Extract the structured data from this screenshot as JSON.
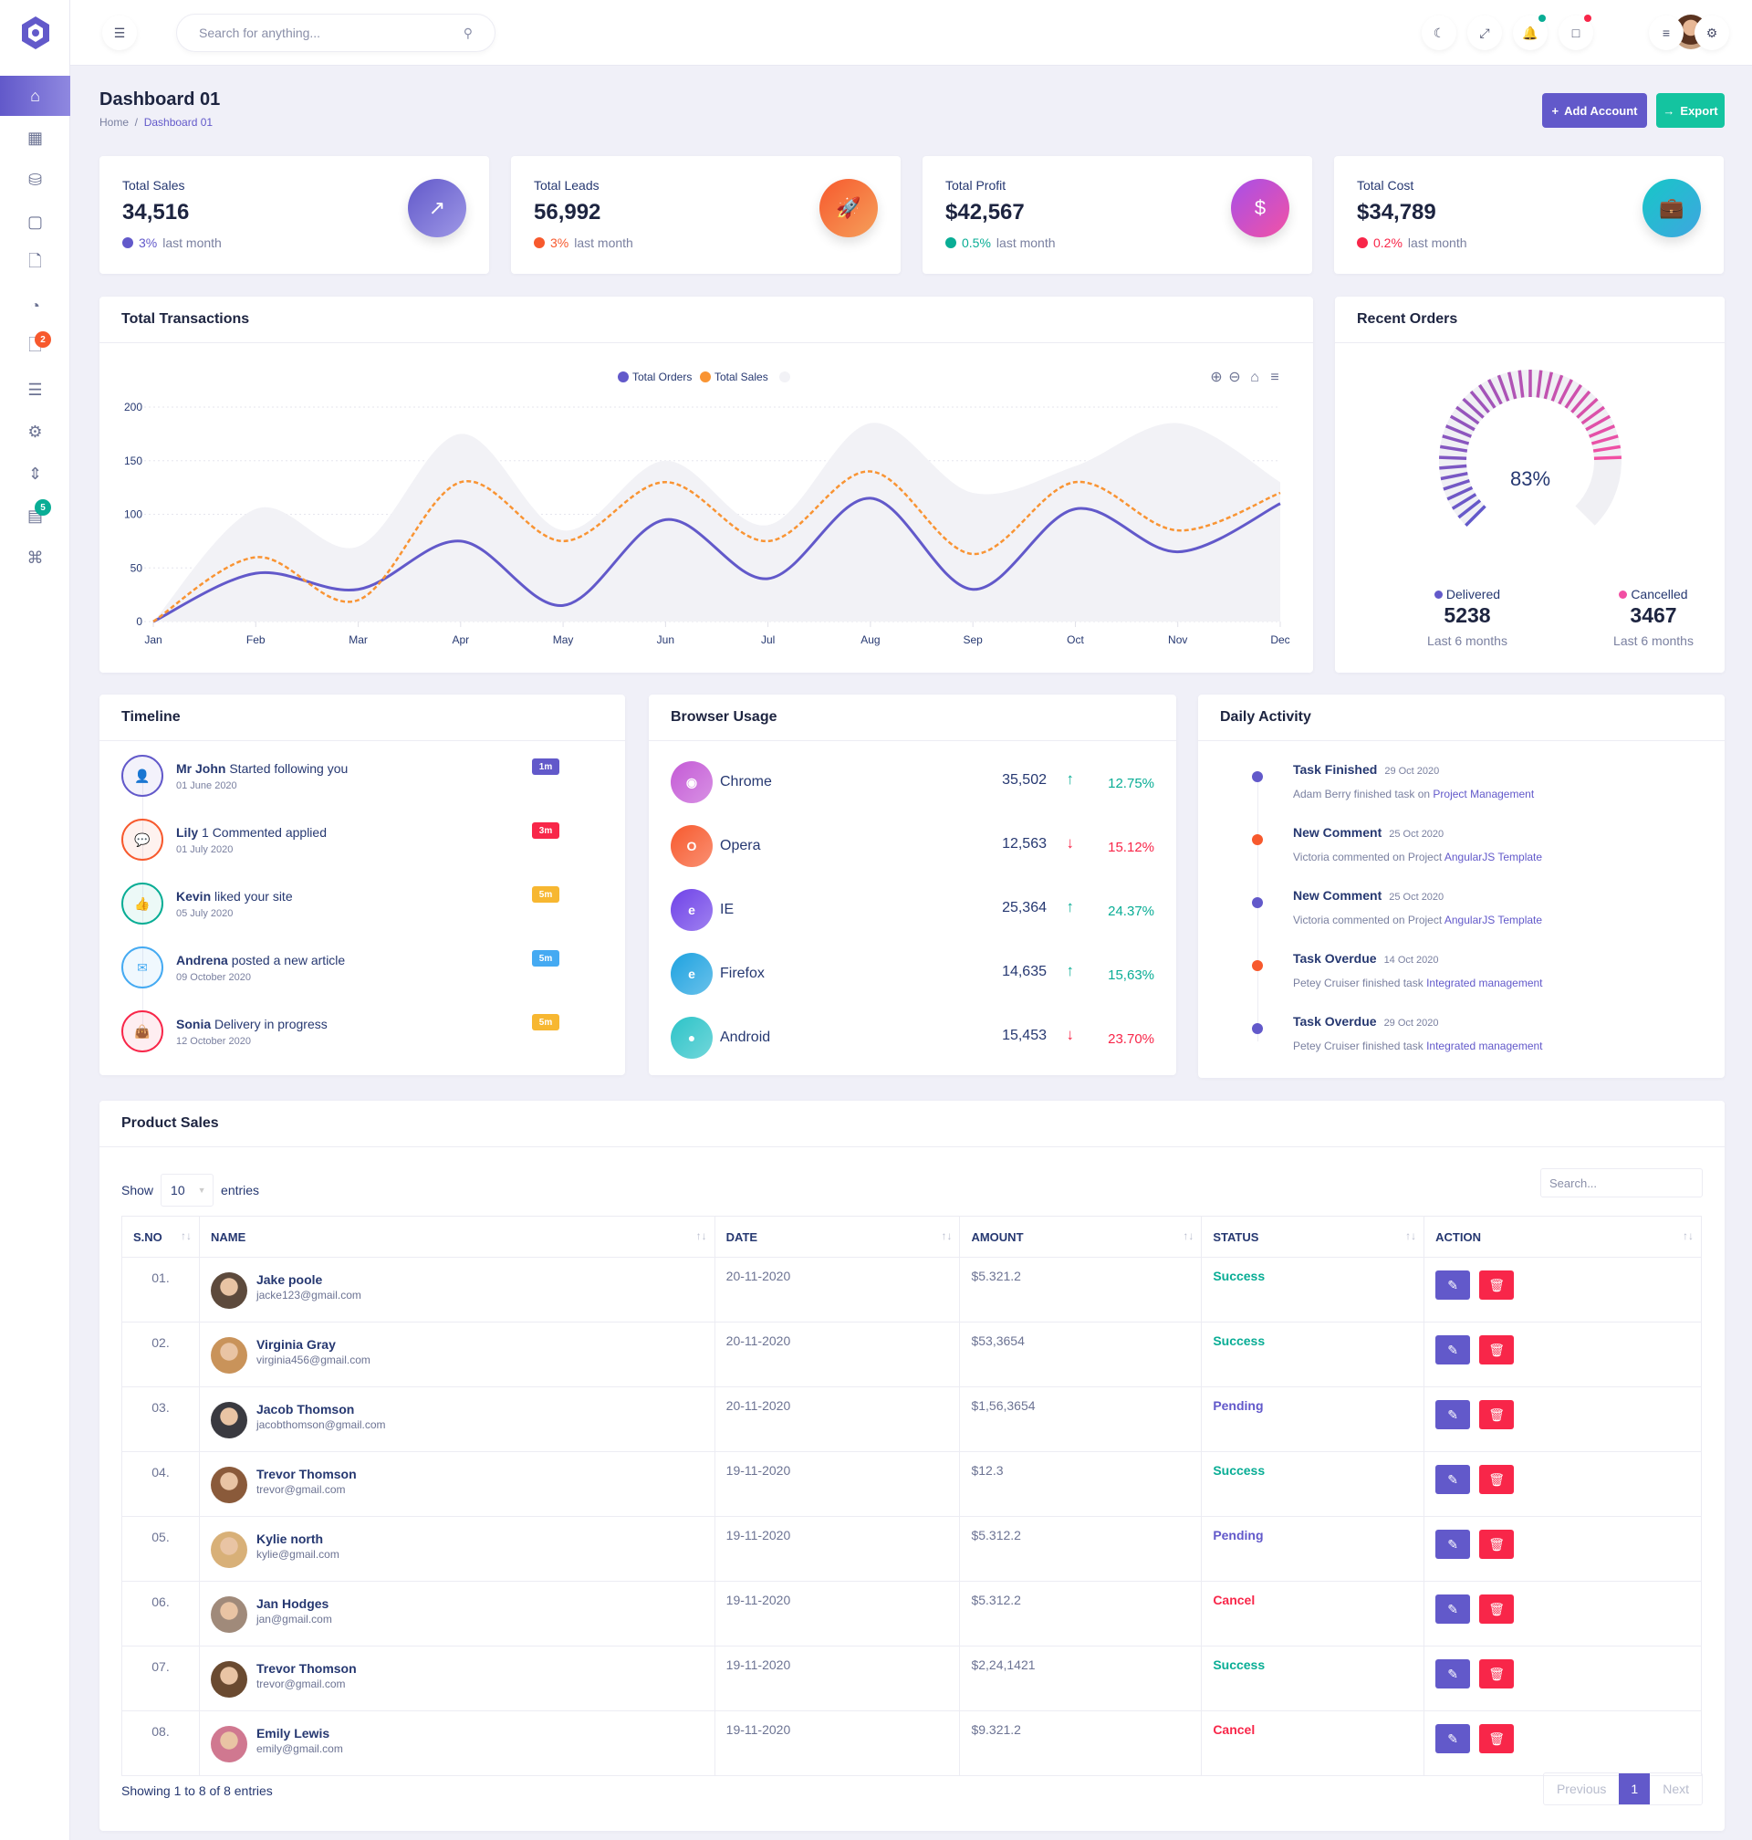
{
  "header": {
    "search_placeholder": "Search for anything..."
  },
  "page": {
    "title": "Dashboard 01",
    "breadcrumb": [
      "Home",
      "Dashboard 01"
    ],
    "add_account": "Add Account",
    "export": "Export"
  },
  "sidebar": {
    "badges": {
      "files": "2",
      "list": "5"
    }
  },
  "stats": [
    {
      "label": "Total Sales",
      "value": "34,516",
      "change": "3%",
      "change_suffix": "last month",
      "trend": "up",
      "color": "#6259ca"
    },
    {
      "label": "Total Leads",
      "value": "56,992",
      "change": "3%",
      "change_suffix": "last month",
      "trend": "up",
      "color": "#f7592d"
    },
    {
      "label": "Total Profit",
      "value": "$42,567",
      "change": "0.5%",
      "change_suffix": "last month",
      "trend": "up",
      "color": "#09ad95"
    },
    {
      "label": "Total Cost",
      "value": "$34,789",
      "change": "0.2%",
      "change_suffix": "last month",
      "trend": "down",
      "color": "#f82649"
    }
  ],
  "transactions": {
    "title": "Total Transactions"
  },
  "chart_data": {
    "type": "line",
    "title": "Total Transactions",
    "categories": [
      "Jan",
      "Feb",
      "Mar",
      "Apr",
      "May",
      "Jun",
      "Jul",
      "Aug",
      "Sep",
      "Oct",
      "Nov",
      "Dec"
    ],
    "ylim": [
      0,
      200
    ],
    "yticks": [
      "0",
      "50",
      "100",
      "150",
      "200"
    ],
    "legend": "top-center",
    "series": [
      {
        "name": "Total Orders",
        "color": "#6259ca",
        "values": [
          0,
          45,
          30,
          75,
          15,
          95,
          40,
          115,
          30,
          105,
          65,
          110
        ]
      },
      {
        "name": "Total Sales",
        "color": "#f99433",
        "values": [
          0,
          60,
          20,
          130,
          75,
          130,
          75,
          140,
          63,
          130,
          85,
          120
        ]
      },
      {
        "name": "",
        "color": "#f2f2f6",
        "values": [
          0,
          105,
          70,
          175,
          85,
          150,
          90,
          185,
          120,
          145,
          185,
          130
        ]
      }
    ]
  },
  "recent_orders": {
    "title": "Recent Orders",
    "percent": 83,
    "percent_label": "83%",
    "delivered": {
      "label": "Delivered",
      "value": "5238",
      "period": "Last 6 months"
    },
    "cancelled": {
      "label": "Cancelled",
      "value": "3467",
      "period": "Last 6 months"
    }
  },
  "timeline": {
    "title": "Timeline",
    "items": [
      {
        "name": "Mr John",
        "text": "Started following you",
        "date": "01 June 2020",
        "badge": "1m",
        "color": "#6259ca"
      },
      {
        "name": "Lily",
        "text": "1 Commented applied",
        "date": "01 July 2020",
        "badge": "3m",
        "color": "#f7592d",
        "badge_color": "#f82649"
      },
      {
        "name": "Kevin",
        "text": "liked your site",
        "date": "05 July 2020",
        "badge": "5m",
        "color": "#09ad95",
        "badge_color": "#f7b731"
      },
      {
        "name": "Andrena",
        "text": "posted a new article",
        "date": "09 October 2020",
        "badge": "5m",
        "color": "#45aaf2",
        "badge_color": "#45aaf2"
      },
      {
        "name": "Sonia",
        "text": "Delivery in progress",
        "date": "12 October 2020",
        "badge": "5m",
        "color": "#f82649",
        "badge_color": "#f7b731"
      }
    ]
  },
  "browser": {
    "title": "Browser Usage",
    "items": [
      {
        "name": "Chrome",
        "value": "35,502",
        "pct": "12.75%",
        "trend": "up",
        "color": "#c45ad6"
      },
      {
        "name": "Opera",
        "value": "12,563",
        "pct": "15.12%",
        "trend": "down",
        "color": "#f7592d"
      },
      {
        "name": "IE",
        "value": "25,364",
        "pct": "24.37%",
        "trend": "up",
        "color": "#6f42e8"
      },
      {
        "name": "Firefox",
        "value": "14,635",
        "pct": "15,63%",
        "trend": "up",
        "color": "#1ea2e0"
      },
      {
        "name": "Android",
        "value": "15,453",
        "pct": "23.70%",
        "trend": "down",
        "color": "#2cc3c8"
      }
    ]
  },
  "daily": {
    "title": "Daily Activity",
    "items": [
      {
        "title": "Task Finished",
        "date": "29 Oct 2020",
        "text": "Adam Berry finished task on",
        "link": "Project Management",
        "color": "#6259ca"
      },
      {
        "title": "New Comment",
        "date": "25 Oct 2020",
        "text": "Victoria commented on Project",
        "link": "AngularJS Template",
        "color": "#f7592d"
      },
      {
        "title": "New Comment",
        "date": "25 Oct 2020",
        "text": "Victoria commented on Project",
        "link": "AngularJS Template",
        "color": "#6259ca"
      },
      {
        "title": "Task Overdue",
        "date": "14 Oct 2020",
        "text": "Petey Cruiser finished task",
        "link": "Integrated management",
        "color": "#f7592d"
      },
      {
        "title": "Task Overdue",
        "date": "29 Oct 2020",
        "text": "Petey Cruiser finished task",
        "link": "Integrated management",
        "color": "#6259ca"
      }
    ]
  },
  "products": {
    "title": "Product Sales",
    "show": "Show",
    "entries_value": "10",
    "entries": "entries",
    "search_placeholder": "Search...",
    "columns": [
      "S.NO",
      "NAME",
      "DATE",
      "AMOUNT",
      "STATUS",
      "ACTION"
    ],
    "rows": [
      {
        "no": "01.",
        "name": "Jake poole",
        "email": "jacke123@gmail.com",
        "date": "20-11-2020",
        "amount": "$5.321.2",
        "status": "Success"
      },
      {
        "no": "02.",
        "name": "Virginia Gray",
        "email": "virginia456@gmail.com",
        "date": "20-11-2020",
        "amount": "$53,3654",
        "status": "Success"
      },
      {
        "no": "03.",
        "name": "Jacob Thomson",
        "email": "jacobthomson@gmail.com",
        "date": "20-11-2020",
        "amount": "$1,56,3654",
        "status": "Pending"
      },
      {
        "no": "04.",
        "name": "Trevor Thomson",
        "email": "trevor@gmail.com",
        "date": "19-11-2020",
        "amount": "$12.3",
        "status": "Success"
      },
      {
        "no": "05.",
        "name": "Kylie north",
        "email": "kylie@gmail.com",
        "date": "19-11-2020",
        "amount": "$5.312.2",
        "status": "Pending"
      },
      {
        "no": "06.",
        "name": "Jan Hodges",
        "email": "jan@gmail.com",
        "date": "19-11-2020",
        "amount": "$5.312.2",
        "status": "Cancel"
      },
      {
        "no": "07.",
        "name": "Trevor Thomson",
        "email": "trevor@gmail.com",
        "date": "19-11-2020",
        "amount": "$2,24,1421",
        "status": "Success"
      },
      {
        "no": "08.",
        "name": "Emily Lewis",
        "email": "emily@gmail.com",
        "date": "19-11-2020",
        "amount": "$9.321.2",
        "status": "Cancel"
      }
    ],
    "footer": "Showing 1 to 8 of 8 entries",
    "prev": "Previous",
    "page": "1",
    "next": "Next"
  }
}
